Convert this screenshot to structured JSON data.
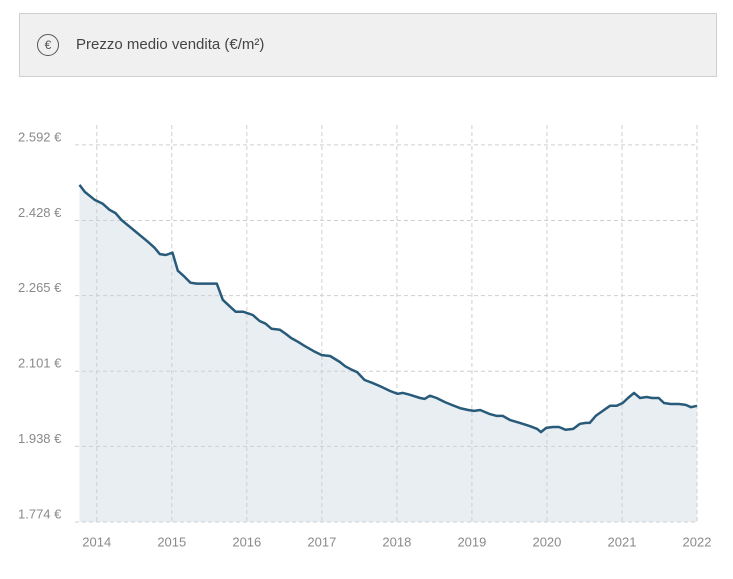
{
  "chart_data": {
    "type": "area",
    "title": "Prezzo medio vendita (€/m²)",
    "icon_label": "€",
    "line_color": "#285a7a",
    "fill_color": "#e8eef2",
    "grid": true,
    "xlim": [
      2013.71,
      2022
    ],
    "xticks": [
      2014,
      2015,
      2016,
      2017,
      2018,
      2019,
      2020,
      2021,
      2022
    ],
    "ylim": [
      1774,
      2635
    ],
    "yticks": [
      {
        "value": 1774,
        "label": "1.774 €"
      },
      {
        "value": 1938,
        "label": "1.938 €"
      },
      {
        "value": 2101,
        "label": "2.101 €"
      },
      {
        "value": 2265,
        "label": "2.265 €"
      },
      {
        "value": 2428,
        "label": "2.428 €"
      },
      {
        "value": 2592,
        "label": "2.592 €"
      }
    ],
    "x": [
      2013.77,
      2013.84,
      2013.97,
      2014.08,
      2014.17,
      2014.25,
      2014.33,
      2014.51,
      2014.68,
      2014.77,
      2014.84,
      2014.92,
      2015.01,
      2015.08,
      2015.17,
      2015.25,
      2015.33,
      2015.51,
      2015.6,
      2015.68,
      2015.75,
      2015.85,
      2015.95,
      2016.08,
      2016.17,
      2016.25,
      2016.33,
      2016.44,
      2016.52,
      2016.59,
      2016.68,
      2016.77,
      2016.91,
      2017.0,
      2017.11,
      2017.24,
      2017.31,
      2017.4,
      2017.47,
      2017.57,
      2017.67,
      2017.77,
      2017.91,
      2018.01,
      2018.08,
      2018.17,
      2018.31,
      2018.37,
      2018.44,
      2018.53,
      2018.64,
      2018.73,
      2018.84,
      2018.95,
      2019.03,
      2019.11,
      2019.24,
      2019.33,
      2019.41,
      2019.51,
      2019.64,
      2019.77,
      2019.87,
      2019.92,
      2019.99,
      2020.08,
      2020.16,
      2020.25,
      2020.35,
      2020.44,
      2020.52,
      2020.57,
      2020.65,
      2020.76,
      2020.84,
      2020.93,
      2021.01,
      2021.08,
      2021.16,
      2021.24,
      2021.33,
      2021.4,
      2021.49,
      2021.56,
      2021.65,
      2021.76,
      2021.85,
      2021.92,
      2022.0
    ],
    "values": [
      2505,
      2490,
      2473,
      2464,
      2451,
      2444,
      2429,
      2405,
      2382,
      2369,
      2355,
      2353,
      2358,
      2319,
      2306,
      2293,
      2291,
      2291,
      2291,
      2256,
      2245,
      2230,
      2230,
      2223,
      2210,
      2204,
      2193,
      2191,
      2182,
      2173,
      2165,
      2156,
      2143,
      2136,
      2134,
      2121,
      2112,
      2104,
      2099,
      2082,
      2076,
      2069,
      2058,
      2052,
      2054,
      2050,
      2043,
      2041,
      2048,
      2043,
      2034,
      2028,
      2021,
      2017,
      2015,
      2017,
      2008,
      2004,
      2004,
      1995,
      1989,
      1982,
      1976,
      1969,
      1978,
      1980,
      1980,
      1974,
      1976,
      1987,
      1989,
      1989,
      2004,
      2017,
      2026,
      2026,
      2032,
      2043,
      2054,
      2043,
      2045,
      2043,
      2043,
      2032,
      2030,
      2030,
      2028,
      2023,
      2026
    ]
  }
}
